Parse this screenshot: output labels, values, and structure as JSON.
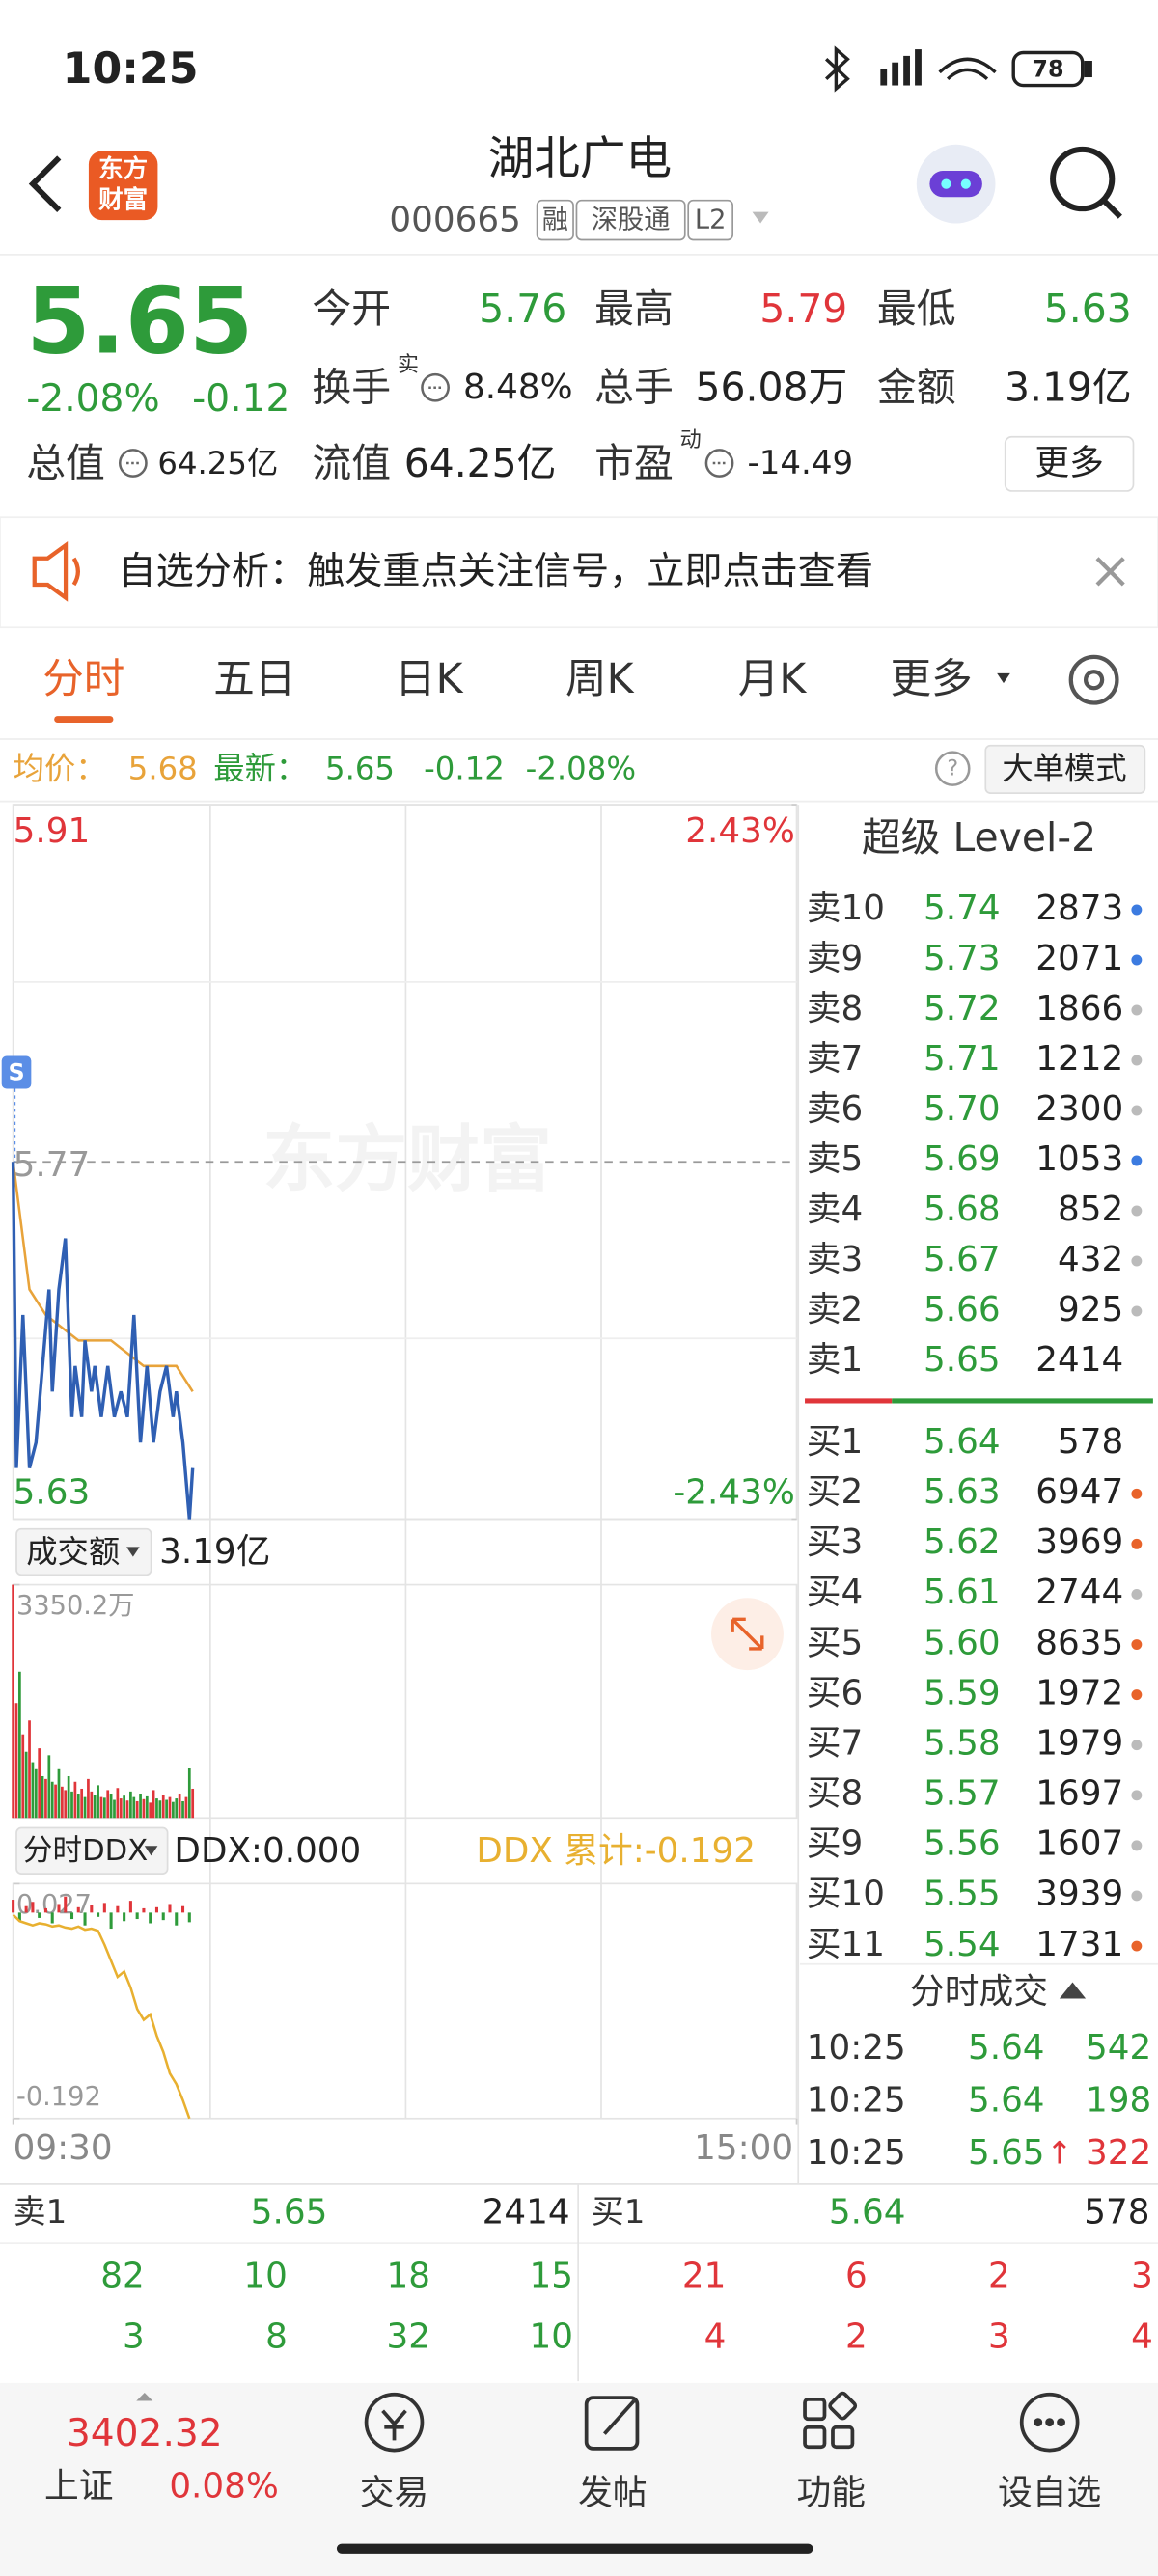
{
  "status_bar": {
    "time": "10:25",
    "battery": "78"
  },
  "header": {
    "logo": [
      "东方",
      "财富"
    ],
    "title": "湖北广电",
    "code": "000665",
    "tags": [
      "融",
      "深股通",
      "L2"
    ]
  },
  "quote": {
    "price": "5.65",
    "change_pct": "-2.08%",
    "change": "-0.12",
    "fields": [
      {
        "label": "今开",
        "value": "5.76"
      },
      {
        "label": "最高",
        "value": "5.79"
      },
      {
        "label": "最低",
        "value": "5.63"
      },
      {
        "label": "换手",
        "sup": "实",
        "value": "8.48%"
      },
      {
        "label": "总手",
        "value": "56.08万"
      },
      {
        "label": "金额",
        "value": "3.19亿"
      },
      {
        "label": "总值",
        "value": "64.25亿"
      },
      {
        "label": "流值",
        "value": "64.25亿"
      },
      {
        "label": "市盈",
        "sup": "动",
        "value": "-14.49"
      }
    ],
    "more": "更多"
  },
  "notice": "自选分析：触发重点关注信号，立即点击查看",
  "tabs": {
    "items": [
      "分时",
      "五日",
      "日K",
      "周K",
      "月K",
      "更多"
    ],
    "active": 0
  },
  "summary_line": {
    "avg_label": "均价：",
    "avg": "5.68",
    "latest_label": "最新：",
    "latest": "5.65",
    "change": "-0.12",
    "change_pct": "-2.08%",
    "mode": "大单模式"
  },
  "price_chart": {
    "x": [
      0,
      1,
      3,
      5,
      7,
      9,
      11,
      12,
      14,
      16,
      18,
      19,
      21,
      22,
      24,
      25,
      27,
      29,
      31,
      33,
      35,
      37,
      39,
      41,
      43,
      45,
      47,
      49,
      50,
      52,
      54,
      55
    ],
    "values": [
      5.77,
      5.65,
      5.71,
      5.65,
      5.66,
      5.69,
      5.72,
      5.68,
      5.72,
      5.74,
      5.67,
      5.69,
      5.67,
      5.7,
      5.68,
      5.69,
      5.67,
      5.69,
      5.67,
      5.68,
      5.67,
      5.71,
      5.66,
      5.69,
      5.66,
      5.68,
      5.69,
      5.67,
      5.68,
      5.66,
      5.63,
      5.65
    ],
    "avg_x": [
      0,
      5,
      10,
      20,
      30,
      40,
      50,
      55
    ],
    "avg_values": [
      5.77,
      5.72,
      5.71,
      5.7,
      5.7,
      5.69,
      5.69,
      5.68
    ],
    "xlim": [
      0,
      240
    ],
    "ylim": [
      5.63,
      5.91
    ],
    "yticks": [
      5.91,
      5.77,
      5.63
    ],
    "pct_ticks": [
      {
        "value": 5.91,
        "label": "2.43%"
      },
      {
        "value": 5.63,
        "label": "-2.43%"
      }
    ],
    "marker": "S",
    "watermark": "东方财富",
    "color": "#2f5fb3",
    "avg_color": "#e8a33a"
  },
  "volume_chart": {
    "selector": "成交额",
    "total": "3.19亿",
    "values": [
      3350.2,
      1650,
      2100,
      1200,
      950,
      1400,
      800,
      700,
      1000,
      600,
      560,
      900,
      520,
      480,
      700,
      450,
      400,
      600,
      380,
      520,
      350,
      420,
      300,
      560,
      380,
      330,
      470,
      300,
      290,
      400,
      350,
      260,
      430,
      280,
      320,
      250,
      380,
      300,
      240,
      350,
      270,
      310,
      220,
      400,
      280,
      250,
      330,
      260,
      300,
      230,
      280,
      350,
      240,
      300,
      720,
      420
    ],
    "up": [
      true,
      true,
      false,
      true,
      false,
      true,
      false,
      false,
      true,
      false,
      true,
      false,
      false,
      true,
      false,
      true,
      true,
      false,
      false,
      true,
      false,
      true,
      false,
      true,
      true,
      false,
      false,
      true,
      false,
      true,
      false,
      false,
      true,
      true,
      false,
      true,
      false,
      false,
      true,
      false,
      true,
      false,
      true,
      true,
      false,
      false,
      true,
      false,
      true,
      false,
      false,
      true,
      false,
      true,
      false,
      true
    ],
    "ylim": [
      0,
      3350.2
    ],
    "yticks": [
      {
        "value": 3350.2,
        "label": "3350.2万"
      }
    ],
    "up_color": "#e0353a",
    "down_color": "#2e9b3a"
  },
  "ddx_chart": {
    "selector": "分时DDX",
    "ddx": "DDX:0.000",
    "ddx_total": "DDX 累计:-0.192",
    "bars": [
      0.012,
      -0.008,
      0.006,
      0.01,
      -0.005,
      0.004,
      -0.01,
      0.008,
      0.015,
      -0.006,
      0.005,
      -0.012,
      0.007,
      -0.004,
      0.009,
      -0.015,
      0.006,
      -0.008,
      0.011,
      -0.006,
      0.004,
      -0.01,
      0.005,
      -0.007,
      0.008,
      -0.012,
      0.006,
      -0.009
    ],
    "line": [
      -0.002,
      -0.008,
      -0.01,
      -0.012,
      -0.01,
      -0.011,
      -0.013,
      -0.012,
      -0.014,
      -0.015,
      -0.013,
      -0.016,
      -0.015,
      -0.017,
      -0.03,
      -0.045,
      -0.06,
      -0.055,
      -0.07,
      -0.09,
      -0.1,
      -0.095,
      -0.115,
      -0.13,
      -0.15,
      -0.16,
      -0.175,
      -0.192
    ],
    "ylim": [
      -0.192,
      0.027
    ],
    "yticks": [
      0.027,
      -0.192
    ],
    "xticks": [
      {
        "value": 0,
        "label": "09:30"
      },
      {
        "value": 240,
        "label": "15:00"
      }
    ],
    "line_color": "#e8b030",
    "up_color": "#e0353a",
    "down_color": "#2e9b3a"
  },
  "order_book": {
    "title": "超级 Level-2",
    "asks": [
      {
        "label": "卖10",
        "price": "5.74",
        "volume": "2873",
        "dot": "#3c7be0"
      },
      {
        "label": "卖9",
        "price": "5.73",
        "volume": "2071",
        "dot": "#3c7be0"
      },
      {
        "label": "卖8",
        "price": "5.72",
        "volume": "1866",
        "dot": "#bbbbbb"
      },
      {
        "label": "卖7",
        "price": "5.71",
        "volume": "1212",
        "dot": "#bbbbbb"
      },
      {
        "label": "卖6",
        "price": "5.70",
        "volume": "2300",
        "dot": "#bbbbbb"
      },
      {
        "label": "卖5",
        "price": "5.69",
        "volume": "1053",
        "dot": "#3c7be0"
      },
      {
        "label": "卖4",
        "price": "5.68",
        "volume": "852",
        "dot": "#bbbbbb"
      },
      {
        "label": "卖3",
        "price": "5.67",
        "volume": "432",
        "dot": "#bbbbbb"
      },
      {
        "label": "卖2",
        "price": "5.66",
        "volume": "925",
        "dot": "#bbbbbb"
      },
      {
        "label": "卖1",
        "price": "5.65",
        "volume": "2414"
      }
    ],
    "bids": [
      {
        "label": "买1",
        "price": "5.64",
        "volume": "578"
      },
      {
        "label": "买2",
        "price": "5.63",
        "volume": "6947",
        "dot": "#e8632a"
      },
      {
        "label": "买3",
        "price": "5.62",
        "volume": "3969",
        "dot": "#e8632a"
      },
      {
        "label": "买4",
        "price": "5.61",
        "volume": "2744",
        "dot": "#bbbbbb"
      },
      {
        "label": "买5",
        "price": "5.60",
        "volume": "8635",
        "dot": "#e8632a"
      },
      {
        "label": "买6",
        "price": "5.59",
        "volume": "1972",
        "dot": "#e8632a"
      },
      {
        "label": "买7",
        "price": "5.58",
        "volume": "1979",
        "dot": "#bbbbbb"
      },
      {
        "label": "买8",
        "price": "5.57",
        "volume": "1697",
        "dot": "#bbbbbb"
      },
      {
        "label": "买9",
        "price": "5.56",
        "volume": "1607",
        "dot": "#bbbbbb"
      },
      {
        "label": "买10",
        "price": "5.55",
        "volume": "3939",
        "dot": "#bbbbbb"
      },
      {
        "label": "买11",
        "price": "5.54",
        "volume": "1731",
        "dot": "#e8632a"
      }
    ],
    "trades_title": "分时成交",
    "trades": [
      {
        "time": "10:25",
        "price": "5.64",
        "volume": "542",
        "color": "#2e9b3a"
      },
      {
        "time": "10:25",
        "price": "5.64",
        "volume": "198",
        "color": "#2e9b3a"
      },
      {
        "time": "10:25",
        "price": "5.65",
        "direction": "↑",
        "volume": "322",
        "color": "#e0353a"
      }
    ]
  },
  "bottom_quote": {
    "ask": {
      "label": "卖1",
      "price": "5.65",
      "volume": "2414"
    },
    "bid": {
      "label": "买1",
      "price": "5.64",
      "volume": "578"
    },
    "ask_rows": [
      [
        "82",
        "10",
        "18",
        "15"
      ],
      [
        "3",
        "8",
        "32",
        "10"
      ]
    ],
    "bid_rows": [
      [
        "21",
        "6",
        "2",
        "3"
      ],
      [
        "4",
        "2",
        "3",
        "4"
      ]
    ]
  },
  "nav": {
    "index_value": "3402.32",
    "index_name": "上证",
    "index_change": "0.08%",
    "items": [
      "交易",
      "发帖",
      "功能",
      "设自选"
    ]
  }
}
